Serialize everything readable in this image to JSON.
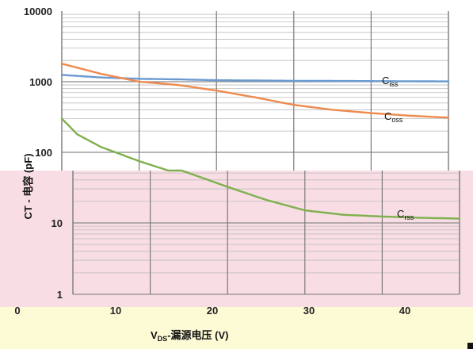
{
  "chart_data": {
    "type": "line",
    "x_scale": "linear",
    "y_scale": "log",
    "xlim": [
      0,
      50
    ],
    "ylim": [
      1,
      10000
    ],
    "ylabel": "CT - 电容 (pF)",
    "xlabel_prefix": "V",
    "xlabel_sub": "DS",
    "xlabel_rest": "-漏源电压 (V)",
    "y_ticks": [
      {
        "value": 10000,
        "label": "10000"
      },
      {
        "value": 1000,
        "label": "1000"
      },
      {
        "value": 100,
        "label": "100"
      },
      {
        "value": 10,
        "label": "10"
      },
      {
        "value": 1,
        "label": "1"
      }
    ],
    "x_ticks": [
      {
        "value": 0,
        "label": "0"
      },
      {
        "value": 10,
        "label": "10"
      },
      {
        "value": 20,
        "label": "20"
      },
      {
        "value": 30,
        "label": "30"
      },
      {
        "value": 40,
        "label": "40"
      }
    ],
    "series": [
      {
        "name_main": "C",
        "name_sub": "iss",
        "color": "#6a9ad1",
        "x": [
          0,
          5,
          10,
          15,
          20,
          30,
          40,
          50
        ],
        "values": [
          1250,
          1150,
          1100,
          1080,
          1050,
          1030,
          1020,
          1010
        ]
      },
      {
        "name_main": "C",
        "name_sub": "oss",
        "color": "#ee8a4e",
        "x": [
          0,
          5,
          10,
          15,
          20,
          25,
          30,
          35,
          40,
          45,
          50
        ],
        "values": [
          1800,
          1300,
          1000,
          900,
          750,
          600,
          470,
          400,
          360,
          330,
          310
        ]
      },
      {
        "name_main": "C",
        "name_sub": "rss",
        "color": "#7fb04e",
        "x": [
          0,
          2,
          5,
          10,
          15,
          20,
          25,
          30,
          35,
          40,
          45,
          50
        ],
        "values": [
          300,
          180,
          120,
          75,
          50,
          32,
          21,
          15,
          13,
          12.3,
          11.8,
          11.5
        ]
      }
    ],
    "grid": true,
    "legend": "inline labels at right of each curve"
  },
  "colors": {
    "pink_band": "#f8dde4",
    "yellow_band": "#fdfbd6",
    "grid_major": "#8a8a8a",
    "grid_minor": "#bdbdbd"
  }
}
